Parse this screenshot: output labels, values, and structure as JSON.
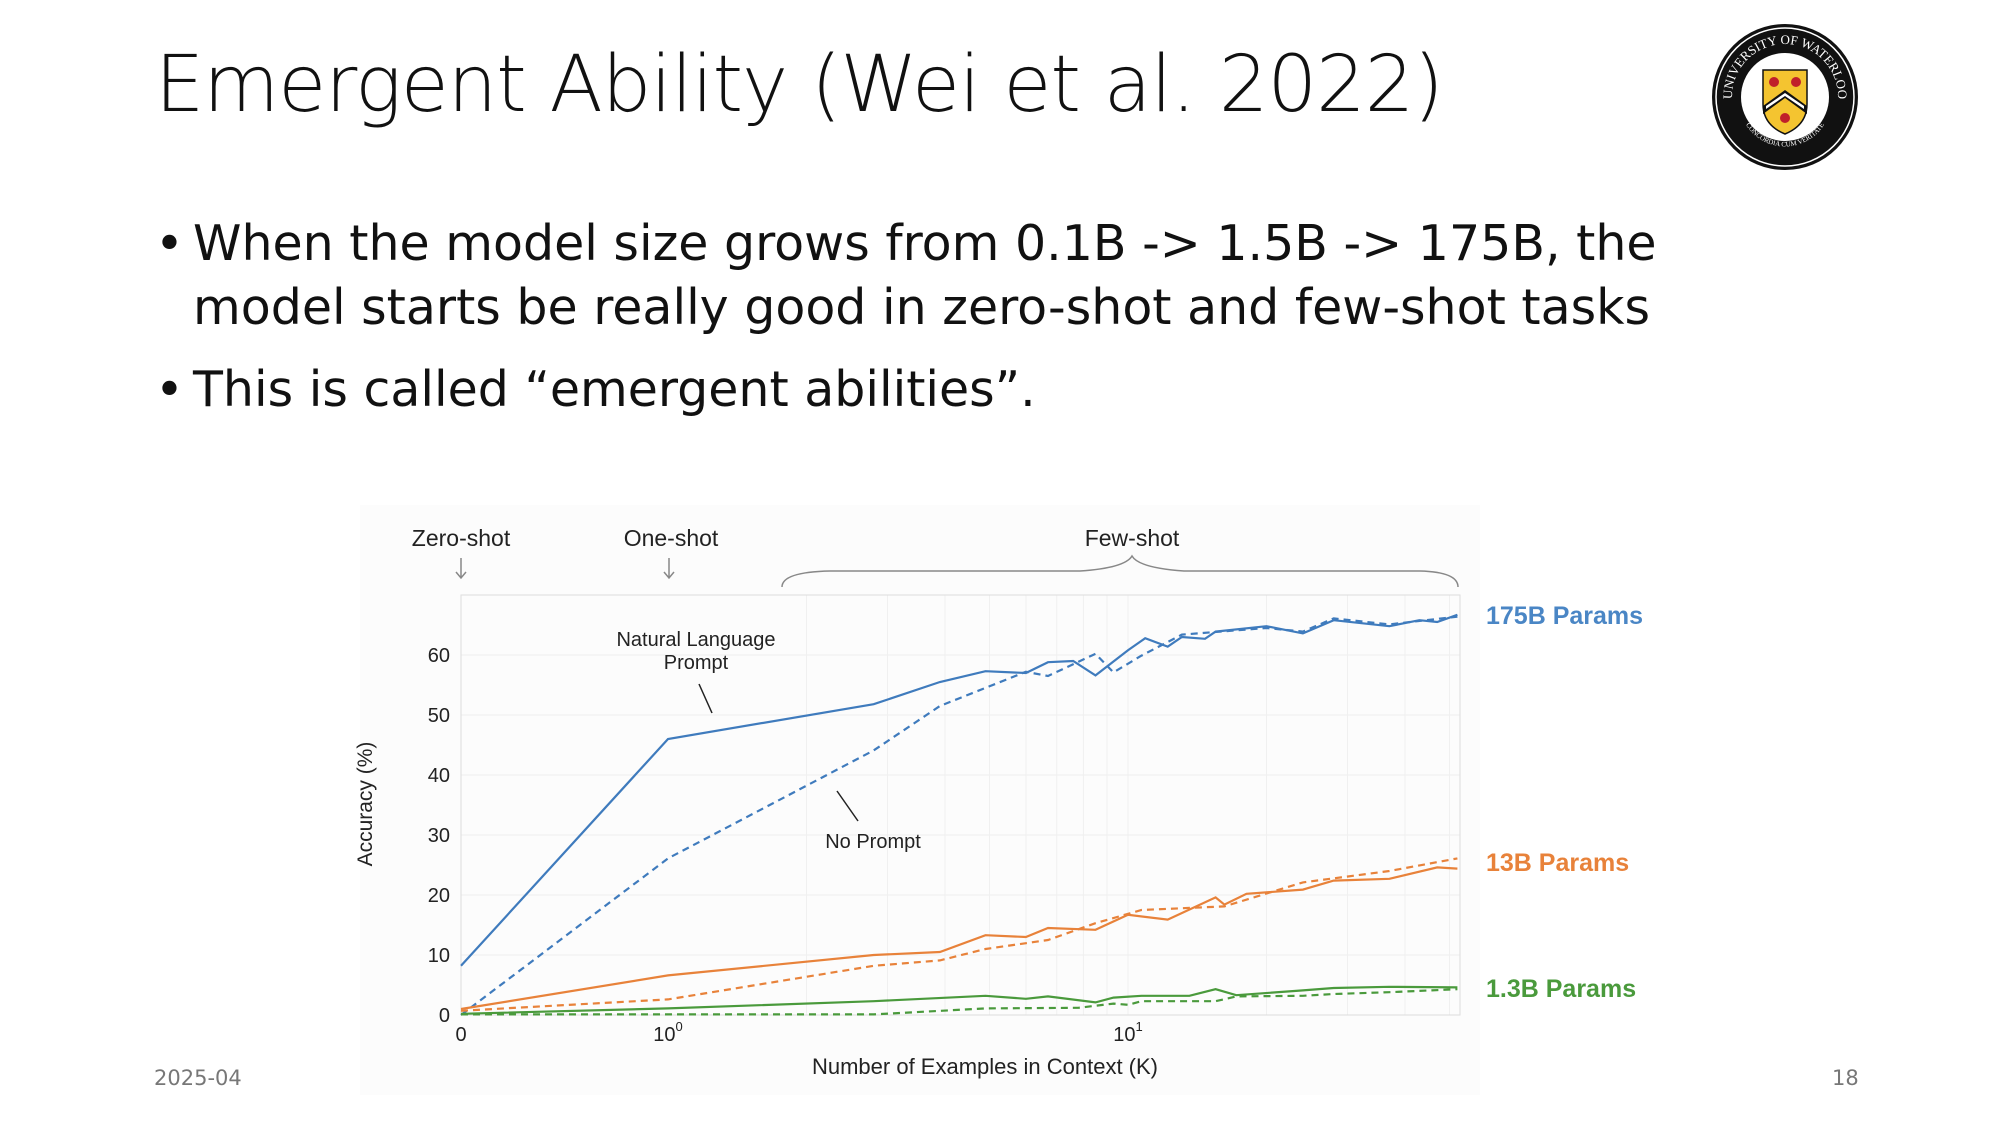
{
  "slide": {
    "title": "Emergent Ability (Wei et al. 2022)",
    "bullets": [
      "When the model size grows from 0.1B -> 1.5B -> 175B, the model starts be really good in zero-shot and few-shot tasks",
      "This is called “emergent abilities”."
    ],
    "bullet_glyph": "•",
    "footer_date": "2025-04",
    "page_number": "18",
    "logo": {
      "text_top": "UNIVERSITY OF WATERLOO",
      "text_bottom": "CONCORDIA CUM VERITATE"
    }
  },
  "chart_data": {
    "type": "line",
    "xlabel": "Number of Examples in Context  (K)",
    "ylabel": "Accuracy (%)",
    "xscale": "symlog",
    "xlim": [
      0,
      52
    ],
    "ylim": [
      0,
      70
    ],
    "yticks": [
      "0",
      "10",
      "20",
      "30",
      "40",
      "50",
      "60"
    ],
    "xticks": [
      {
        "label": "0",
        "value": 0
      },
      {
        "label": "10",
        "sup": "0",
        "value": 1
      },
      {
        "label": "10",
        "sup": "1",
        "value": 10
      }
    ],
    "grid": true,
    "top_labels": {
      "zero_shot": "Zero-shot",
      "one_shot": "One-shot",
      "few_shot": "Few-shot"
    },
    "annotations": {
      "nl_prompt_line1": "Natural Language",
      "nl_prompt_line2": "Prompt",
      "no_prompt": "No Prompt"
    },
    "series": [
      {
        "name": "175B Params",
        "color": "#3f7bbd",
        "style": "solid",
        "x": [
          0,
          1,
          2.8,
          3.9,
          4.9,
          6,
          6.7,
          7.6,
          8.5,
          10,
          10.9,
          12.2,
          13.1,
          14.7,
          15.5,
          20,
          24,
          28,
          37,
          43,
          47,
          52
        ],
        "y": [
          8.2,
          46,
          51.8,
          55.5,
          57.3,
          57,
          58.8,
          59,
          56.6,
          60.8,
          62.8,
          61.4,
          63,
          62.7,
          63.9,
          64.8,
          63.6,
          65.8,
          64.8,
          65.8,
          65.5,
          66.7
        ]
      },
      {
        "name": "175B Params",
        "color": "#3f7bbd",
        "style": "dashed",
        "x": [
          0,
          1,
          2.8,
          3.9,
          6,
          6.7,
          8.5,
          9.3,
          10.7,
          13.1,
          20,
          24,
          28,
          37,
          52
        ],
        "y": [
          0,
          26.1,
          44.1,
          51.5,
          57.2,
          56.5,
          60.2,
          57.1,
          59.9,
          63.4,
          64.5,
          63.9,
          66.1,
          65.1,
          66.4
        ]
      },
      {
        "name": "13B Params",
        "color": "#e8823a",
        "style": "solid",
        "x": [
          0,
          1,
          2.8,
          3.9,
          4.9,
          6,
          6.7,
          8.5,
          10,
          12.2,
          15.5,
          16.2,
          18.1,
          24,
          28,
          37,
          47,
          52
        ],
        "y": [
          1,
          6.6,
          10,
          10.5,
          13.3,
          13,
          14.5,
          14.2,
          16.7,
          15.9,
          19.6,
          18.4,
          20.2,
          20.9,
          22.4,
          22.7,
          24.6,
          24.4
        ]
      },
      {
        "name": "13B Params",
        "color": "#e8823a",
        "style": "dashed",
        "x": [
          0,
          1,
          2.8,
          3.9,
          4.9,
          6.7,
          8.5,
          10.7,
          16.2,
          24,
          37,
          52
        ],
        "y": [
          0.7,
          2.6,
          8.2,
          9.1,
          11,
          12.5,
          15.3,
          17.5,
          18.1,
          22.1,
          24,
          26.1
        ]
      },
      {
        "name": "1.3B Params",
        "color": "#4a9a3c",
        "style": "solid",
        "x": [
          0,
          1,
          2.8,
          4.9,
          6,
          6.7,
          8.5,
          9.3,
          10.7,
          13.6,
          15.5,
          17.2,
          24,
          28,
          37,
          52
        ],
        "y": [
          0.2,
          1.1,
          2.3,
          3.2,
          2.7,
          3.1,
          2.1,
          2.9,
          3.2,
          3.2,
          4.3,
          3.3,
          4.1,
          4.5,
          4.7,
          4.6
        ]
      },
      {
        "name": "1.3B Params",
        "color": "#4a9a3c",
        "style": "dashed",
        "x": [
          0,
          1,
          2.8,
          4.9,
          7.8,
          9.3,
          10,
          10.7,
          15.5,
          17.2,
          24,
          28,
          37,
          52
        ],
        "y": [
          0.1,
          0.1,
          0.1,
          1.1,
          1.2,
          1.9,
          1.7,
          2.3,
          2.3,
          3.1,
          3.2,
          3.5,
          3.8,
          4.3
        ]
      }
    ],
    "legend": [
      {
        "label": "175B Params",
        "color": "#4a86c5"
      },
      {
        "label": "13B Params",
        "color": "#e8823a"
      },
      {
        "label": "1.3B Params",
        "color": "#4a9a3c"
      }
    ]
  }
}
